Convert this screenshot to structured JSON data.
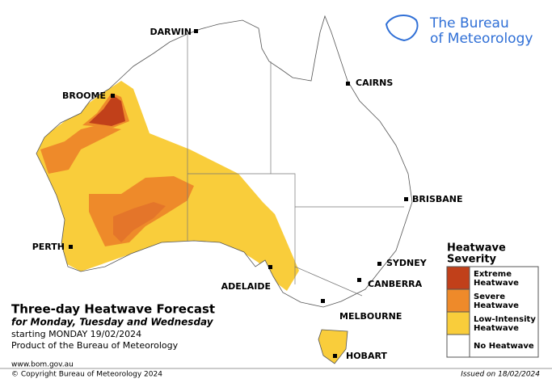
{
  "logo": {
    "lines": [
      "The Bureau",
      "of Meteorology"
    ]
  },
  "cities": [
    {
      "name": "DARWIN"
    },
    {
      "name": "CAIRNS"
    },
    {
      "name": "BROOME"
    },
    {
      "name": "BRISBANE"
    },
    {
      "name": "PERTH"
    },
    {
      "name": "SYDNEY"
    },
    {
      "name": "CANBERRA"
    },
    {
      "name": "ADELAIDE"
    },
    {
      "name": "MELBOURNE"
    },
    {
      "name": "HOBART"
    }
  ],
  "legend": {
    "title": [
      "Heatwave",
      "Severity"
    ],
    "items": [
      {
        "label": [
          "Extreme",
          "Heatwave"
        ]
      },
      {
        "label": [
          "Severe",
          "Heatwave"
        ]
      },
      {
        "label": [
          "Low-Intensity",
          "Heatwave"
        ]
      },
      {
        "label": [
          "No Heatwave"
        ]
      }
    ]
  },
  "title": "Three-day Heatwave Forecast",
  "subtitle": "for Monday, Tuesday and Wednesday",
  "starting": "starting MONDAY 19/02/2024",
  "product": "Product of the Bureau of Meteorology",
  "website": "www.bom.gov.au",
  "copyright": "© Copyright Bureau of Meteorology 2024",
  "issued": "Issued on 18/02/2024"
}
